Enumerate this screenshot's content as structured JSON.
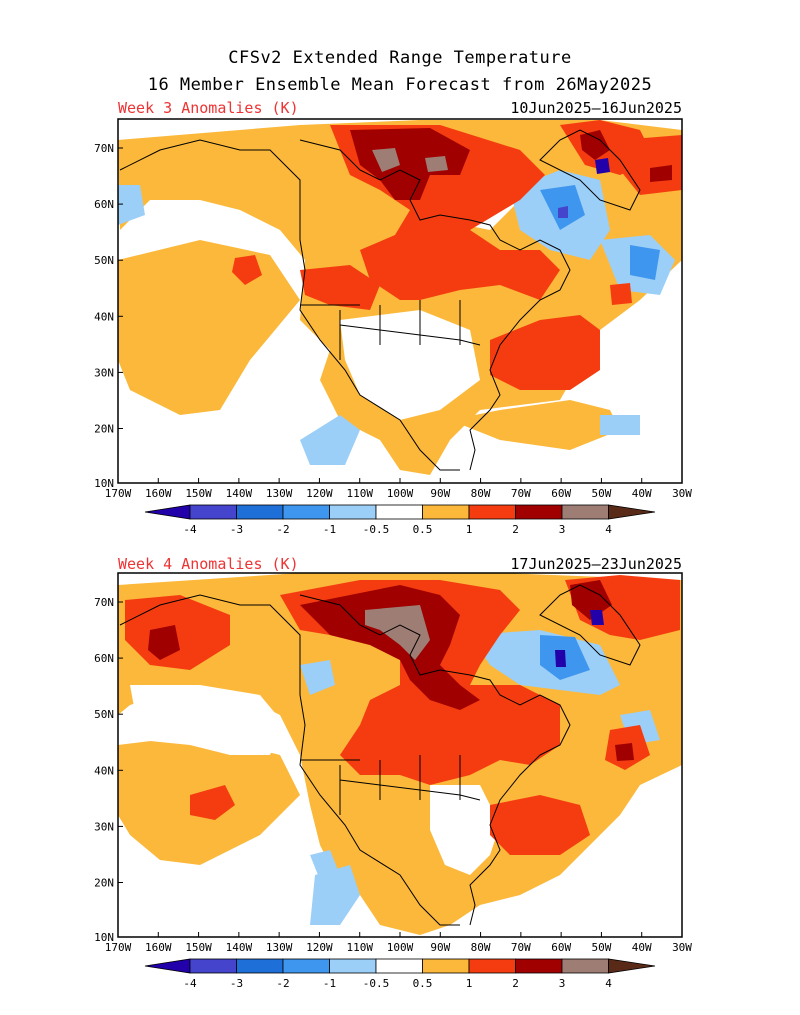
{
  "title_line1": "CFSv2 Extended Range Temperature",
  "title_line2": "16 Member Ensemble Mean Forecast from 26May2025",
  "lat_labels": [
    "70N",
    "60N",
    "50N",
    "40N",
    "30N",
    "20N",
    "10N"
  ],
  "lon_labels": [
    "170W",
    "160W",
    "150W",
    "140W",
    "130W",
    "120W",
    "110W",
    "100W",
    "90W",
    "80W",
    "70W",
    "60W",
    "50W",
    "40W",
    "30W"
  ],
  "colorbar": {
    "labels": [
      "-4",
      "-3",
      "-2",
      "-1",
      "-0.5",
      "0.5",
      "1",
      "2",
      "3",
      "4"
    ],
    "colors": [
      "#2200aa",
      "#4444cc",
      "#1f6fd8",
      "#3f96ee",
      "#9ccff7",
      "#ffffff",
      "#fbb83a",
      "#f43c10",
      "#a00000",
      "#9e7e74",
      "#5a2a18"
    ]
  },
  "panels": [
    {
      "week_label": "Week 3 Anomalies (K)",
      "date_range": "10Jun2025–16Jun2025"
    },
    {
      "week_label": "Week 4 Anomalies (K)",
      "date_range": "17Jun2025–23Jun2025"
    }
  ],
  "units": "K"
}
